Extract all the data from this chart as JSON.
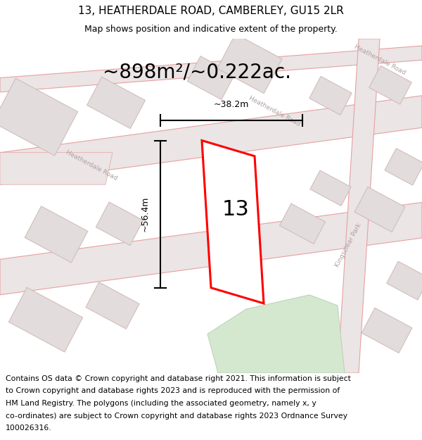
{
  "title_line1": "13, HEATHERDALE ROAD, CAMBERLEY, GU15 2LR",
  "title_line2": "Map shows position and indicative extent of the property.",
  "area_text": "~898m²/~0.222ac.",
  "dim_height": "~56.4m",
  "dim_width": "~38.2m",
  "plot_number": "13",
  "footer_lines": [
    "Contains OS data © Crown copyright and database right 2021. This information is subject",
    "to Crown copyright and database rights 2023 and is reproduced with the permission of",
    "HM Land Registry. The polygons (including the associated geometry, namely x, y",
    "co-ordinates) are subject to Crown copyright and database rights 2023 Ordnance Survey",
    "100026316."
  ],
  "map_bg": "#f7f4f4",
  "road_fill": "#ebe5e5",
  "road_stroke": "#e8a0a0",
  "block_fill": "#e2dcdc",
  "block_stroke": "#d0b8b8",
  "green_fill": "#d4e8d0",
  "green_stroke": "#b8d0b4",
  "plot_stroke": "#ff0000",
  "plot_fill": "#ffffff",
  "dim_color": "#000000",
  "title_fontsize": 11,
  "subtitle_fontsize": 9,
  "area_fontsize": 20,
  "dim_fontsize": 9,
  "plot_num_fontsize": 22,
  "footer_fontsize": 7.8,
  "road_label_color": "#b0a0a0",
  "road_label_fontsize": 6.5
}
